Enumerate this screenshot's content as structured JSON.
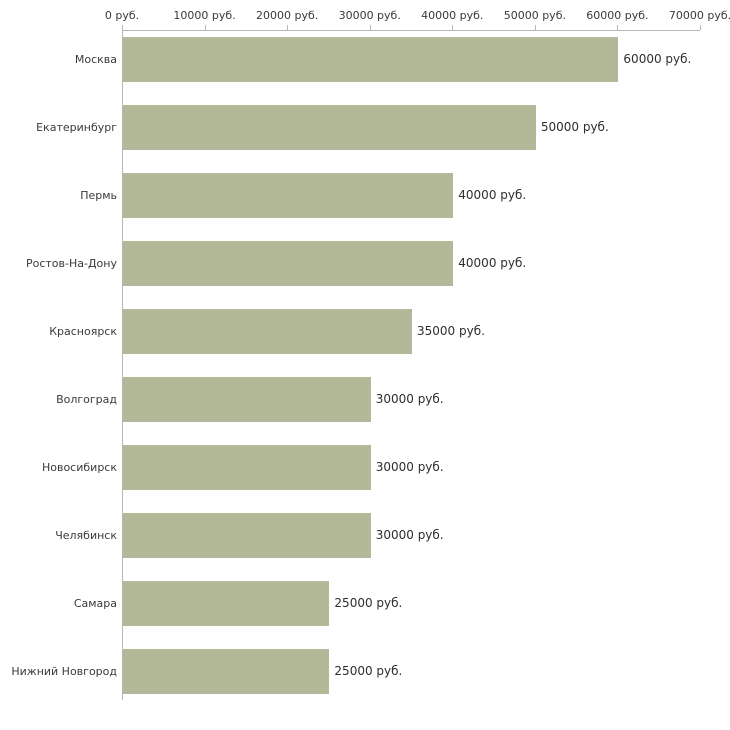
{
  "chart_data": {
    "type": "bar",
    "orientation": "horizontal",
    "title": "",
    "categories": [
      "Москва",
      "Екатеринбург",
      "Пермь",
      "Ростов-На-Дону",
      "Красноярск",
      "Волгоград",
      "Новосибирск",
      "Челябинск",
      "Самара",
      "Нижний Новгород"
    ],
    "values": [
      60000,
      50000,
      40000,
      40000,
      35000,
      30000,
      30000,
      30000,
      25000,
      25000
    ],
    "value_labels": [
      "60000 руб.",
      "50000 руб.",
      "40000 руб.",
      "40000 руб.",
      "35000 руб.",
      "30000 руб.",
      "30000 руб.",
      "30000 руб.",
      "25000 руб.",
      "25000 руб."
    ],
    "x_axis": {
      "position": "top",
      "min": 0,
      "max": 70000,
      "ticks": [
        0,
        10000,
        20000,
        30000,
        40000,
        50000,
        60000,
        70000
      ],
      "tick_labels": [
        "0 руб.",
        "10000 руб.",
        "20000 руб.",
        "30000 руб.",
        "40000 руб.",
        "50000 руб.",
        "60000 руб.",
        "70000 руб."
      ]
    },
    "grid": "off",
    "legend": "none",
    "colors": {
      "bar_fill": "#b3b998",
      "axis": "#b7b7b7",
      "text": "#3a3a3a"
    }
  }
}
